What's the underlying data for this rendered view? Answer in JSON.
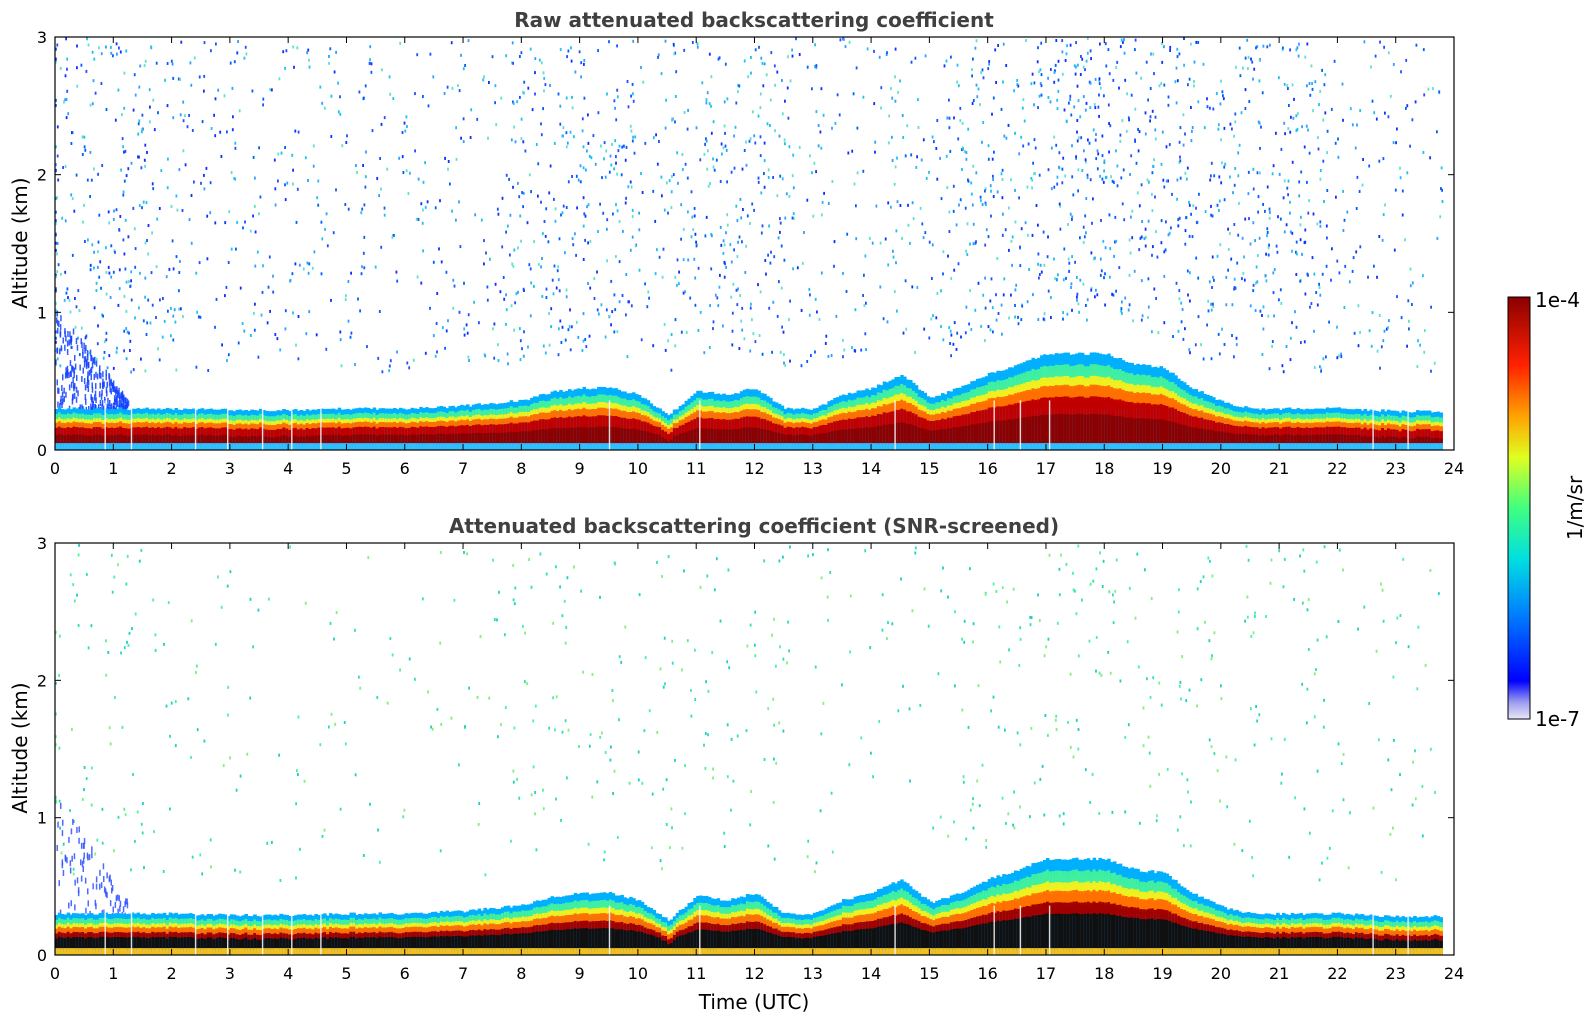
{
  "chart_data": [
    {
      "type": "heatmap",
      "title": "Raw attenuated backscattering coefficient",
      "xlabel": "",
      "ylabel": "Altitude (km)",
      "xlim": [
        0,
        24
      ],
      "ylim": [
        0,
        3
      ],
      "x_ticks": [
        "0",
        "1",
        "2",
        "3",
        "4",
        "5",
        "6",
        "7",
        "8",
        "9",
        "10",
        "11",
        "12",
        "13",
        "14",
        "15",
        "16",
        "17",
        "18",
        "19",
        "20",
        "21",
        "22",
        "23",
        "24"
      ],
      "y_ticks": [
        "0",
        "1",
        "2",
        "3"
      ],
      "noise_level": "high",
      "boundary_layer_top_km": [
        [
          0,
          0.3
        ],
        [
          1,
          0.3
        ],
        [
          2,
          0.3
        ],
        [
          3,
          0.29
        ],
        [
          4,
          0.29
        ],
        [
          5,
          0.3
        ],
        [
          6,
          0.3
        ],
        [
          7,
          0.32
        ],
        [
          8,
          0.36
        ],
        [
          8.5,
          0.42
        ],
        [
          9,
          0.45
        ],
        [
          9.5,
          0.45
        ],
        [
          10,
          0.4
        ],
        [
          10.5,
          0.25
        ],
        [
          11,
          0.43
        ],
        [
          11.5,
          0.4
        ],
        [
          12,
          0.45
        ],
        [
          12.5,
          0.3
        ],
        [
          13,
          0.3
        ],
        [
          13.5,
          0.4
        ],
        [
          14,
          0.45
        ],
        [
          14.5,
          0.55
        ],
        [
          15,
          0.38
        ],
        [
          15.5,
          0.45
        ],
        [
          16,
          0.55
        ],
        [
          16.5,
          0.62
        ],
        [
          17,
          0.7
        ],
        [
          17.5,
          0.7
        ],
        [
          18,
          0.7
        ],
        [
          18.5,
          0.62
        ],
        [
          19,
          0.6
        ],
        [
          19.5,
          0.45
        ],
        [
          20,
          0.35
        ],
        [
          20.5,
          0.3
        ],
        [
          21,
          0.3
        ],
        [
          22,
          0.3
        ],
        [
          23,
          0.28
        ],
        [
          23.8,
          0.28
        ]
      ]
    },
    {
      "type": "heatmap",
      "title": "Attenuated backscattering coefficient (SNR-screened)",
      "xlabel": "Time (UTC)",
      "ylabel": "Altitude (km)",
      "xlim": [
        0,
        24
      ],
      "ylim": [
        0,
        3
      ],
      "x_ticks": [
        "0",
        "1",
        "2",
        "3",
        "4",
        "5",
        "6",
        "7",
        "8",
        "9",
        "10",
        "11",
        "12",
        "13",
        "14",
        "15",
        "16",
        "17",
        "18",
        "19",
        "20",
        "21",
        "22",
        "23",
        "24"
      ],
      "y_ticks": [
        "0",
        "1",
        "2",
        "3"
      ],
      "noise_level": "low",
      "boundary_layer_top_km": [
        [
          0,
          0.3
        ],
        [
          1,
          0.3
        ],
        [
          2,
          0.3
        ],
        [
          3,
          0.29
        ],
        [
          4,
          0.29
        ],
        [
          5,
          0.3
        ],
        [
          6,
          0.3
        ],
        [
          7,
          0.32
        ],
        [
          8,
          0.36
        ],
        [
          8.5,
          0.42
        ],
        [
          9,
          0.45
        ],
        [
          9.5,
          0.45
        ],
        [
          10,
          0.4
        ],
        [
          10.5,
          0.25
        ],
        [
          11,
          0.43
        ],
        [
          11.5,
          0.4
        ],
        [
          12,
          0.45
        ],
        [
          12.5,
          0.3
        ],
        [
          13,
          0.3
        ],
        [
          13.5,
          0.4
        ],
        [
          14,
          0.45
        ],
        [
          14.5,
          0.55
        ],
        [
          15,
          0.38
        ],
        [
          15.5,
          0.45
        ],
        [
          16,
          0.55
        ],
        [
          16.5,
          0.62
        ],
        [
          17,
          0.7
        ],
        [
          17.5,
          0.7
        ],
        [
          18,
          0.7
        ],
        [
          18.5,
          0.62
        ],
        [
          19,
          0.6
        ],
        [
          19.5,
          0.45
        ],
        [
          20,
          0.35
        ],
        [
          20.5,
          0.3
        ],
        [
          21,
          0.3
        ],
        [
          22,
          0.3
        ],
        [
          23,
          0.28
        ],
        [
          23.8,
          0.28
        ]
      ]
    }
  ],
  "colorbar": {
    "max_label": "1e-4",
    "min_label": "1e-7",
    "unit_label": "1/m/sr",
    "colormap": "jet"
  }
}
